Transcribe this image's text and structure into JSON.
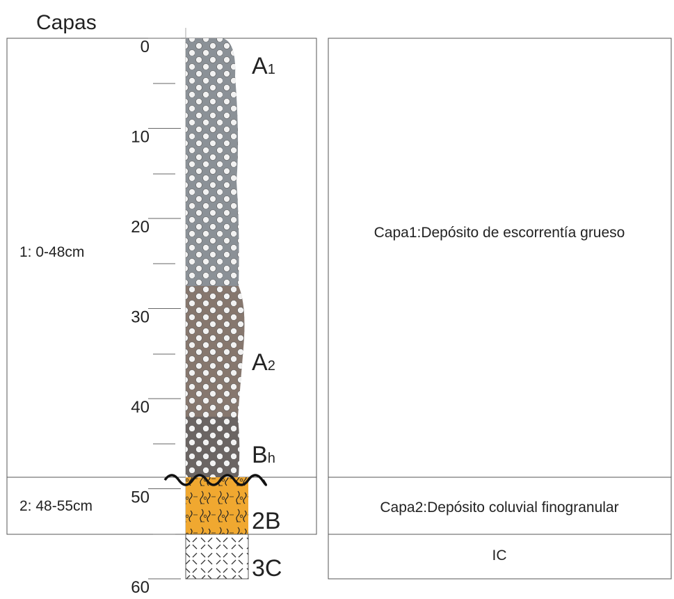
{
  "title": "Capas",
  "depth_scale": {
    "ticks": [
      0,
      10,
      20,
      30,
      40,
      50,
      60
    ]
  },
  "horizons": [
    {
      "main": "A",
      "sub": "1"
    },
    {
      "main": "A",
      "sub": "2"
    },
    {
      "main": "B",
      "sub": "h"
    },
    {
      "main": "2B"
    },
    {
      "main": "3C"
    }
  ],
  "layers": [
    {
      "label": "1: 0-48cm",
      "description": "Capa1:Depósito de escorrentía grueso"
    },
    {
      "label": "2: 48-55cm",
      "description": "Capa2:Depósito coluvial finogranular"
    },
    {
      "description": "IC"
    }
  ]
}
